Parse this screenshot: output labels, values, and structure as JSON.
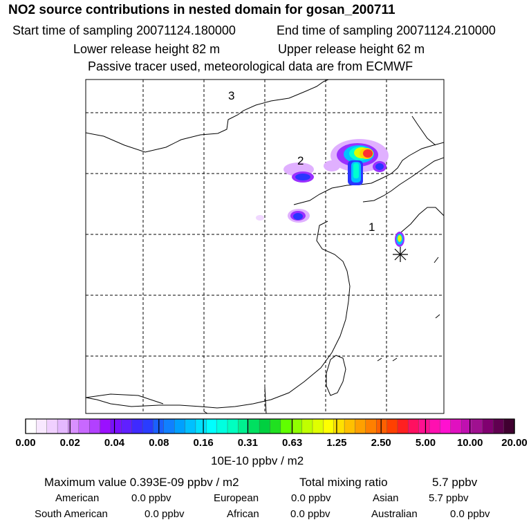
{
  "header": {
    "title": "NO2 source contributions in nested domain for gosan_200711",
    "start_time": "Start time of sampling 20071124.180000",
    "end_time": "End time of sampling 20071124.210000",
    "lower_release": "Lower release height   82 m",
    "upper_release": "Upper release height   62 m",
    "tracer_note": "Passive tracer used, meteorological data are from ECMWF"
  },
  "map": {
    "region_labels": [
      "1",
      "2",
      "3"
    ],
    "receptor_marker": "asterisk-icon",
    "plume_colors": [
      "#e0b0ff",
      "#9a30ff",
      "#2a35ff",
      "#00c0ff",
      "#00ffd0",
      "#3dff00",
      "#d8ff00",
      "#ffd000",
      "#ff3030"
    ]
  },
  "legend": {
    "tick_labels": [
      "0.00",
      "0.02",
      "0.04",
      "0.08",
      "0.16",
      "0.31",
      "0.63",
      "1.25",
      "2.50",
      "5.00",
      "10.00",
      "20.00"
    ],
    "units": "10E-10 ppbv / m2",
    "colors": [
      "#ffffff",
      "#f8e8ff",
      "#f0d0ff",
      "#e4b8ff",
      "#d890ff",
      "#c868ff",
      "#b240ff",
      "#9a10ff",
      "#7a10ff",
      "#6020ff",
      "#3f2aff",
      "#2a3cff",
      "#1a60ff",
      "#1080ff",
      "#00a0ff",
      "#00c0ff",
      "#00e0ff",
      "#00ffff",
      "#00ffe0",
      "#00ffc0",
      "#00f090",
      "#00e060",
      "#00d040",
      "#20e020",
      "#60ff00",
      "#90ff00",
      "#c0ff00",
      "#e0ff00",
      "#ffff00",
      "#ffe000",
      "#ffc000",
      "#ffa000",
      "#ff8000",
      "#ff6000",
      "#ff4000",
      "#ff2020",
      "#ff1060",
      "#ff1090",
      "#ff10b0",
      "#ff10d0",
      "#e010c0",
      "#c010b0",
      "#a01090",
      "#800070",
      "#600050",
      "#400030"
    ]
  },
  "summary": {
    "max_value": "Maximum value  0.393E-09 ppbv / m2",
    "total_label": "Total mixing ratio",
    "total_value": "5.7 ppbv",
    "american": "American",
    "american_v": "0.0 ppbv",
    "european": "European",
    "european_v": "0.0 ppbv",
    "asian": "Asian",
    "asian_v": "5.7 ppbv",
    "south_american": "South American",
    "south_american_v": "0.0 ppbv",
    "african": "African",
    "african_v": "0.0 ppbv",
    "australian": "Australian",
    "australian_v": "0.0 ppbv"
  }
}
